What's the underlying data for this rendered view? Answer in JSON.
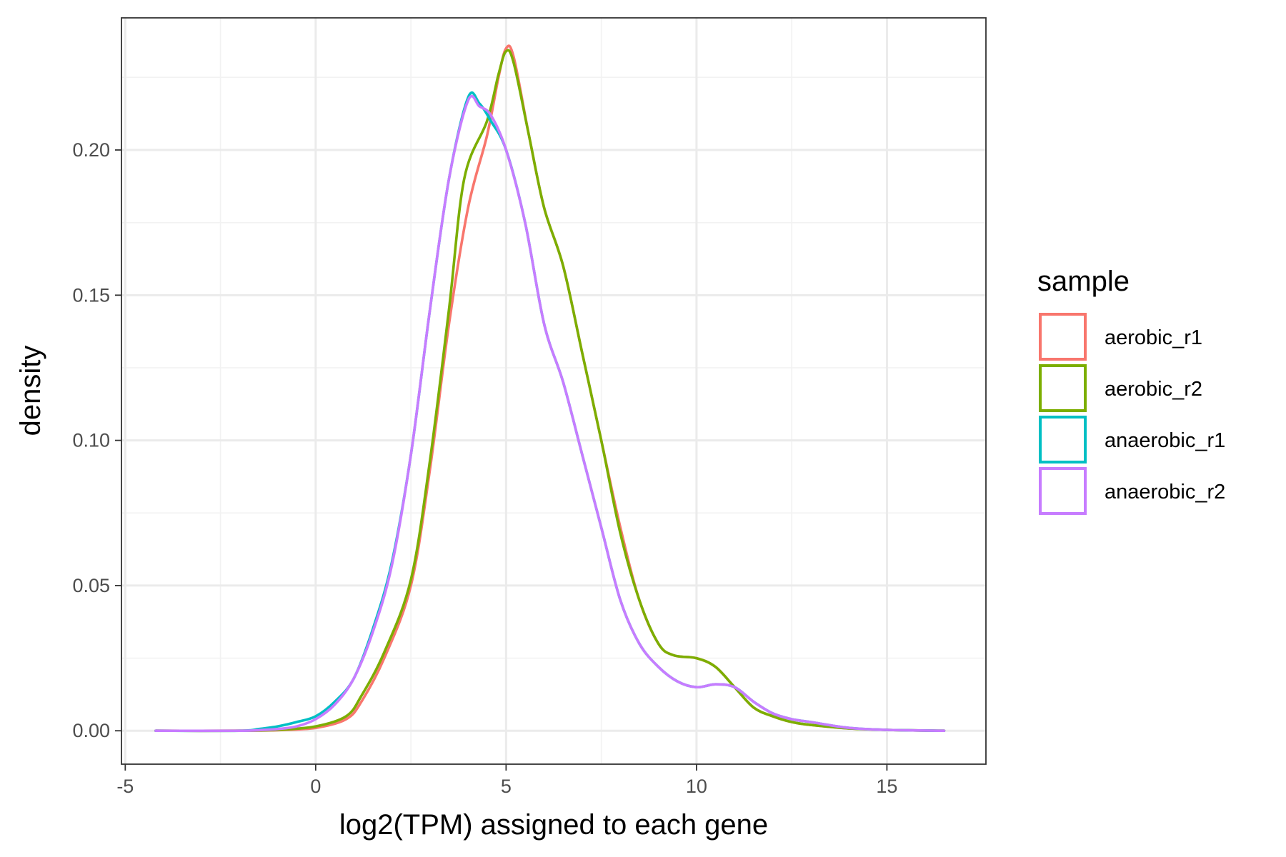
{
  "chart_data": {
    "type": "line",
    "title": "",
    "xlabel": "log2(TPM) assigned to each gene",
    "ylabel": "density",
    "xlim": [
      -5.1,
      17.6
    ],
    "ylim": [
      -0.0115,
      0.2455
    ],
    "x_ticks": [
      -5,
      0,
      5,
      10,
      15
    ],
    "x_tick_labels": [
      "-5",
      "0",
      "5",
      "10",
      "15"
    ],
    "y_ticks": [
      0.0,
      0.05,
      0.1,
      0.15,
      0.2
    ],
    "y_tick_labels": [
      "0.00",
      "0.05",
      "0.10",
      "0.15",
      "0.20"
    ],
    "grid": true,
    "legend": {
      "title": "sample",
      "position": "right"
    },
    "series": [
      {
        "name": "aerobic_r1",
        "color": "#F8766D",
        "points": [
          [
            -4.2,
            0.0
          ],
          [
            -2.0,
            0.0
          ],
          [
            -1.0,
            0.0002
          ],
          [
            0.0,
            0.001
          ],
          [
            0.8,
            0.004
          ],
          [
            1.2,
            0.01
          ],
          [
            1.8,
            0.025
          ],
          [
            2.5,
            0.05
          ],
          [
            3.0,
            0.09
          ],
          [
            3.5,
            0.14
          ],
          [
            4.0,
            0.18
          ],
          [
            4.5,
            0.205
          ],
          [
            4.8,
            0.225
          ],
          [
            5.0,
            0.235
          ],
          [
            5.2,
            0.232
          ],
          [
            5.6,
            0.205
          ],
          [
            6.0,
            0.18
          ],
          [
            6.5,
            0.16
          ],
          [
            7.0,
            0.13
          ],
          [
            7.5,
            0.1
          ],
          [
            8.0,
            0.07
          ],
          [
            8.5,
            0.045
          ],
          [
            9.0,
            0.03
          ],
          [
            9.4,
            0.026
          ],
          [
            10.0,
            0.025
          ],
          [
            10.5,
            0.022
          ],
          [
            11.0,
            0.015
          ],
          [
            11.5,
            0.008
          ],
          [
            12.0,
            0.005
          ],
          [
            12.5,
            0.003
          ],
          [
            13.0,
            0.002
          ],
          [
            14.0,
            0.0008
          ],
          [
            15.0,
            0.0003
          ],
          [
            16.5,
            0.0
          ]
        ]
      },
      {
        "name": "aerobic_r2",
        "color": "#7CAE00",
        "points": [
          [
            -4.2,
            0.0
          ],
          [
            -2.0,
            0.0
          ],
          [
            -1.0,
            0.0003
          ],
          [
            0.0,
            0.0015
          ],
          [
            0.8,
            0.005
          ],
          [
            1.2,
            0.012
          ],
          [
            1.8,
            0.027
          ],
          [
            2.5,
            0.052
          ],
          [
            3.0,
            0.093
          ],
          [
            3.5,
            0.145
          ],
          [
            3.9,
            0.19
          ],
          [
            4.5,
            0.21
          ],
          [
            4.8,
            0.226
          ],
          [
            5.0,
            0.234
          ],
          [
            5.2,
            0.23
          ],
          [
            5.6,
            0.205
          ],
          [
            6.0,
            0.18
          ],
          [
            6.5,
            0.16
          ],
          [
            7.0,
            0.13
          ],
          [
            7.5,
            0.1
          ],
          [
            8.0,
            0.068
          ],
          [
            8.5,
            0.045
          ],
          [
            9.0,
            0.03
          ],
          [
            9.4,
            0.026
          ],
          [
            10.0,
            0.025
          ],
          [
            10.5,
            0.022
          ],
          [
            11.0,
            0.015
          ],
          [
            11.5,
            0.008
          ],
          [
            12.0,
            0.005
          ],
          [
            12.5,
            0.003
          ],
          [
            13.0,
            0.002
          ],
          [
            14.0,
            0.0008
          ],
          [
            15.0,
            0.0003
          ],
          [
            16.5,
            0.0
          ]
        ]
      },
      {
        "name": "anaerobic_r1",
        "color": "#00BFC4",
        "points": [
          [
            -4.2,
            0.0
          ],
          [
            -2.0,
            0.0
          ],
          [
            -1.5,
            0.0006
          ],
          [
            -1.0,
            0.0015
          ],
          [
            -0.5,
            0.003
          ],
          [
            0.0,
            0.005
          ],
          [
            0.5,
            0.01
          ],
          [
            1.0,
            0.018
          ],
          [
            1.5,
            0.035
          ],
          [
            2.0,
            0.058
          ],
          [
            2.5,
            0.095
          ],
          [
            3.0,
            0.145
          ],
          [
            3.5,
            0.19
          ],
          [
            4.0,
            0.218
          ],
          [
            4.3,
            0.216
          ],
          [
            4.6,
            0.21
          ],
          [
            5.0,
            0.2
          ],
          [
            5.5,
            0.175
          ],
          [
            6.0,
            0.14
          ],
          [
            6.5,
            0.12
          ],
          [
            7.0,
            0.095
          ],
          [
            7.5,
            0.07
          ],
          [
            8.0,
            0.045
          ],
          [
            8.5,
            0.03
          ],
          [
            9.0,
            0.022
          ],
          [
            9.5,
            0.017
          ],
          [
            10.0,
            0.015
          ],
          [
            10.5,
            0.016
          ],
          [
            11.0,
            0.015
          ],
          [
            11.5,
            0.01
          ],
          [
            12.0,
            0.006
          ],
          [
            12.5,
            0.004
          ],
          [
            13.0,
            0.003
          ],
          [
            14.0,
            0.001
          ],
          [
            15.0,
            0.0003
          ],
          [
            16.5,
            0.0
          ]
        ]
      },
      {
        "name": "anaerobic_r2",
        "color": "#C77CFF",
        "points": [
          [
            -4.2,
            0.0
          ],
          [
            -2.0,
            0.0
          ],
          [
            -1.5,
            0.0002
          ],
          [
            -1.0,
            0.0006
          ],
          [
            -0.5,
            0.0015
          ],
          [
            0.0,
            0.004
          ],
          [
            0.5,
            0.009
          ],
          [
            1.0,
            0.018
          ],
          [
            1.5,
            0.034
          ],
          [
            2.0,
            0.057
          ],
          [
            2.5,
            0.095
          ],
          [
            3.0,
            0.145
          ],
          [
            3.5,
            0.19
          ],
          [
            4.0,
            0.217
          ],
          [
            4.3,
            0.215
          ],
          [
            4.6,
            0.212
          ],
          [
            5.0,
            0.2
          ],
          [
            5.5,
            0.175
          ],
          [
            6.0,
            0.14
          ],
          [
            6.5,
            0.12
          ],
          [
            7.0,
            0.095
          ],
          [
            7.5,
            0.07
          ],
          [
            8.0,
            0.045
          ],
          [
            8.5,
            0.03
          ],
          [
            9.0,
            0.022
          ],
          [
            9.5,
            0.017
          ],
          [
            10.0,
            0.015
          ],
          [
            10.5,
            0.016
          ],
          [
            11.0,
            0.015
          ],
          [
            11.5,
            0.01
          ],
          [
            12.0,
            0.006
          ],
          [
            12.5,
            0.004
          ],
          [
            13.0,
            0.003
          ],
          [
            14.0,
            0.001
          ],
          [
            15.0,
            0.0003
          ],
          [
            16.5,
            0.0
          ]
        ]
      }
    ]
  }
}
